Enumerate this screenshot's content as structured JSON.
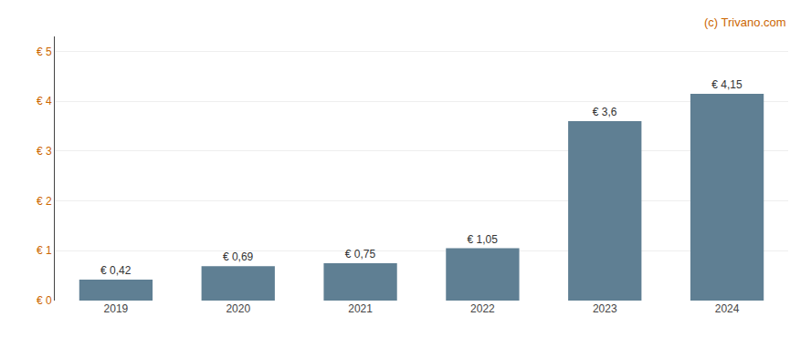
{
  "chart_data": {
    "type": "bar",
    "categories": [
      "2019",
      "2020",
      "2021",
      "2022",
      "2023",
      "2024"
    ],
    "values": [
      0.42,
      0.69,
      0.75,
      1.05,
      3.6,
      4.15
    ],
    "value_labels": [
      "€ 0,42",
      "€ 0,69",
      "€ 0,75",
      "€ 1,05",
      "€ 3,6",
      "€ 4,15"
    ],
    "data_labels": true,
    "color": "#5f7f93",
    "ylim": [
      0,
      5.3
    ],
    "yticks": [
      {
        "value": 0,
        "label": "€ 0"
      },
      {
        "value": 1,
        "label": "€ 1"
      },
      {
        "value": 2,
        "label": "€ 2"
      },
      {
        "value": 3,
        "label": "€ 3"
      },
      {
        "value": 4,
        "label": "€ 4"
      },
      {
        "value": 5,
        "label": "€ 5"
      }
    ],
    "grid": true,
    "annotations": [
      "(c) Trivano.com"
    ]
  }
}
